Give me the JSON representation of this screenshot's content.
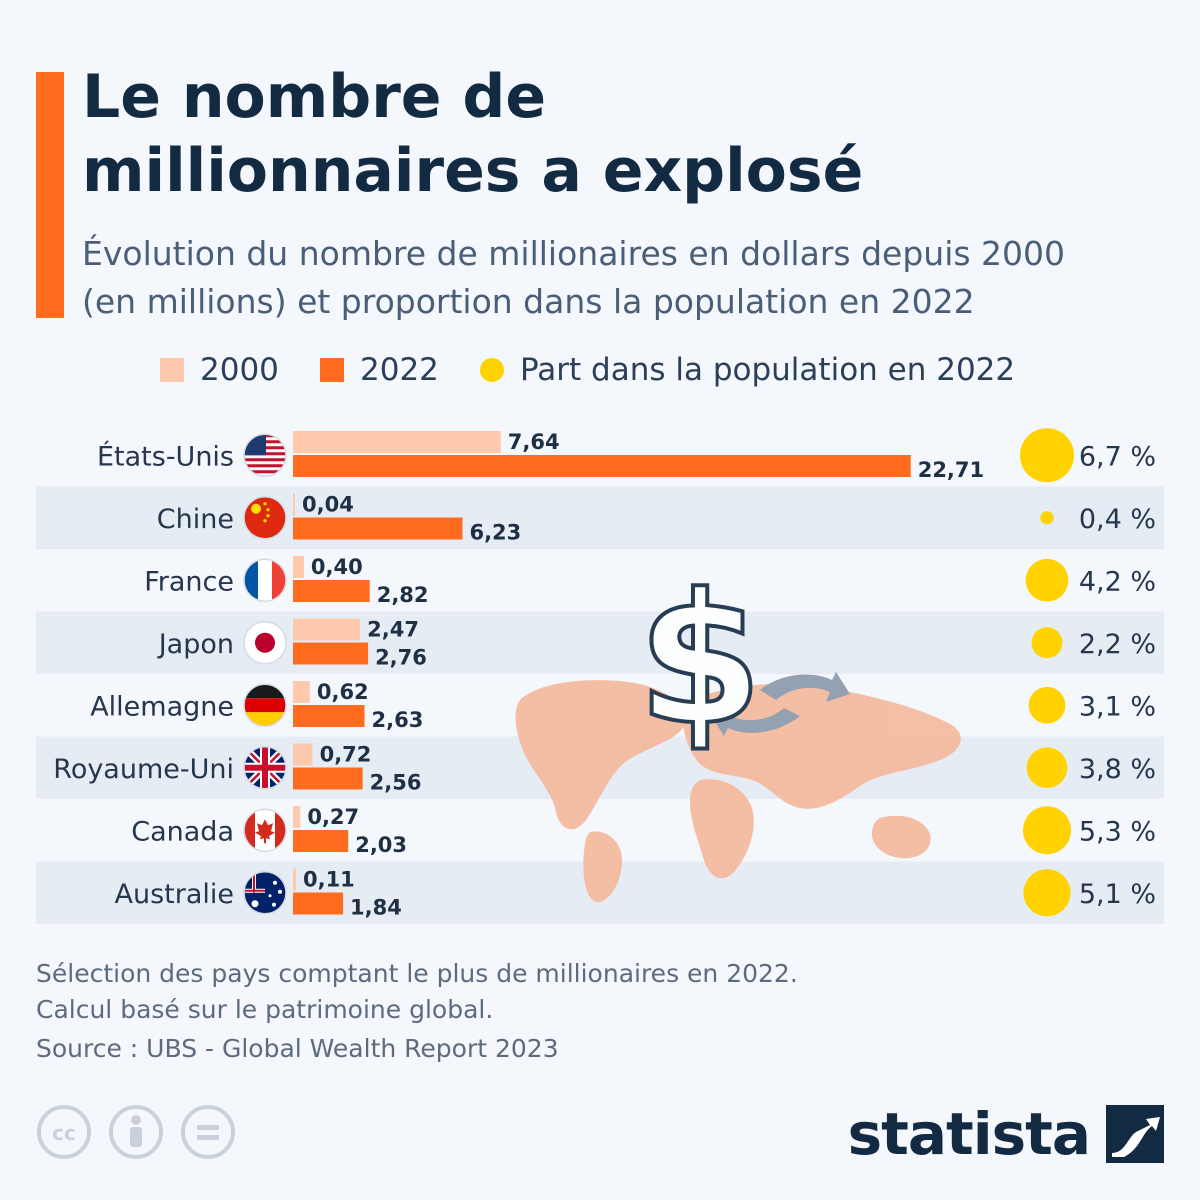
{
  "header": {
    "title_line1": "Le nombre de",
    "title_line2": "millionnaires a explosé",
    "subtitle_line1": "Évolution du nombre de millionaires en dollars depuis 2000",
    "subtitle_line2": "(en millions) et proportion dans la population en 2022"
  },
  "legend": {
    "item_2000": "2000",
    "item_2022": "2022",
    "item_share": "Part dans la population en 2022"
  },
  "colors": {
    "bar_2000": "#ffc9ad",
    "bar_2022": "#ff6b1f",
    "share_dot": "#ffd200",
    "row_band": "#e6ecf4",
    "accent": "#ff6b1f",
    "map": "#f4b89b"
  },
  "chart_data": {
    "type": "bar",
    "orientation": "horizontal",
    "categories": [
      "États-Unis",
      "Chine",
      "France",
      "Japon",
      "Allemagne",
      "Royaume-Uni",
      "Canada",
      "Australie"
    ],
    "series": [
      {
        "name": "2000",
        "values": [
          7.64,
          0.04,
          0.4,
          2.47,
          0.62,
          0.72,
          0.27,
          0.11
        ],
        "labels": [
          "7,64",
          "0,04",
          "0,40",
          "2,47",
          "0,62",
          "0,72",
          "0,27",
          "0,11"
        ]
      },
      {
        "name": "2022",
        "values": [
          22.71,
          6.23,
          2.82,
          2.76,
          2.63,
          2.56,
          2.03,
          1.84
        ],
        "labels": [
          "22,71",
          "6,23",
          "2,82",
          "2,76",
          "2,63",
          "2,56",
          "2,03",
          "1,84"
        ]
      }
    ],
    "share": {
      "name": "Part dans la population en 2022",
      "values": [
        6.7,
        0.4,
        4.2,
        2.2,
        3.1,
        3.8,
        5.3,
        5.1
      ],
      "labels": [
        "6,7 %",
        "0,4 %",
        "4,2 %",
        "2,2 %",
        "3,1 %",
        "3,8 %",
        "5,3 %",
        "5,1 %"
      ]
    },
    "flags": [
      "us-flag-icon",
      "china-flag-icon",
      "france-flag-icon",
      "japan-flag-icon",
      "germany-flag-icon",
      "uk-flag-icon",
      "canada-flag-icon",
      "australia-flag-icon"
    ]
  },
  "footer": {
    "note_line1": "Sélection des pays comptant le plus de millionaires en 2022.",
    "note_line2": "Calcul basé sur le patrimoine global.",
    "source": "Source : UBS - Global Wealth Report 2023",
    "brand": "statista",
    "license_icons": [
      "cc-icon",
      "attribution-icon",
      "no-derivatives-icon"
    ]
  }
}
